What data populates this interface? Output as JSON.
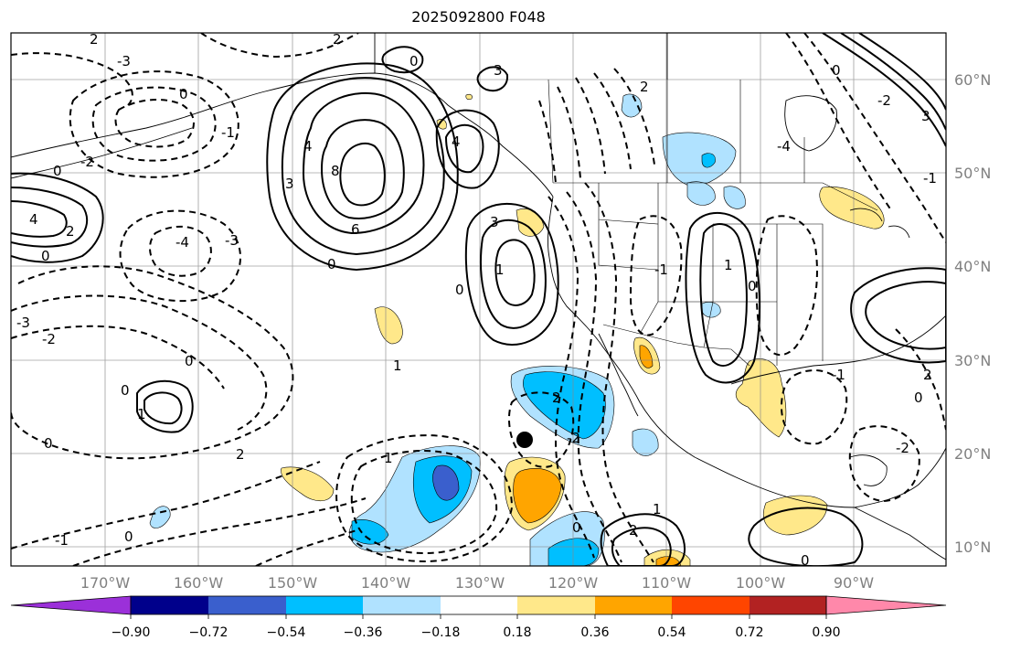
{
  "title": "2025092800 F048",
  "map": {
    "lon_labels": [
      "170°W",
      "160°W",
      "150°W",
      "140°W",
      "130°W",
      "120°W",
      "110°W",
      "100°W",
      "90°W"
    ],
    "lat_labels": [
      "60°N",
      "50°N",
      "40°N",
      "30°N",
      "20°N",
      "10°N"
    ],
    "contour_labels": [
      "0",
      "2",
      "4",
      "8",
      "6",
      "3",
      "1",
      "-1",
      "-2",
      "-3",
      "-4",
      "0",
      "1",
      "2",
      "3",
      "-1",
      "-2",
      "0",
      "1",
      "2",
      "1",
      "2",
      "-1",
      "0",
      "1",
      "2"
    ]
  },
  "colorbar": {
    "ticks": [
      "−0.90",
      "−0.72",
      "−0.54",
      "−0.36",
      "−0.18",
      "0.18",
      "0.36",
      "0.54",
      "0.72",
      "0.90"
    ],
    "colors": [
      "#9b30d9",
      "#00008b",
      "#3a5fcd",
      "#00bfff",
      "#b0e2ff",
      "#ffffff",
      "#ffe88a",
      "#ffa500",
      "#ff4500",
      "#b22222",
      "#ff88aa"
    ]
  },
  "colors": {
    "light_blue": "#b0e2ff",
    "blue": "#00bfff",
    "royal_blue": "#3a5fcd",
    "light_yellow": "#ffe88a",
    "orange": "#ffa500"
  }
}
